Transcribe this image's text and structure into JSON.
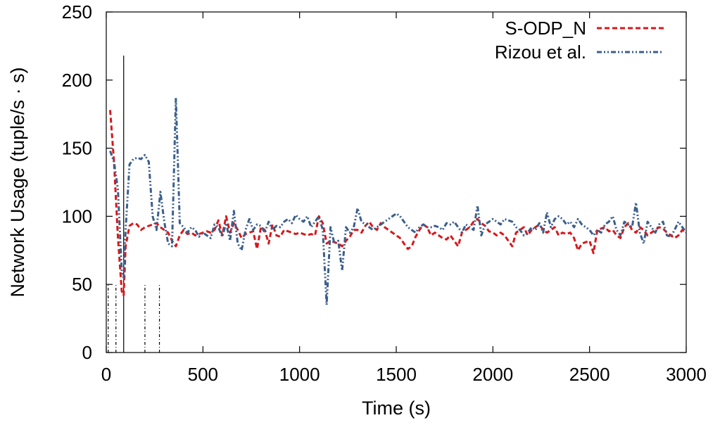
{
  "chart_data": {
    "type": "line",
    "title": "",
    "xlabel": "Time (s)",
    "ylabel": "Network Usage (tuple/s · s)",
    "xlim": [
      0,
      3000
    ],
    "ylim": [
      0,
      250
    ],
    "xticks": [
      0,
      500,
      1000,
      1500,
      2000,
      2500,
      3000
    ],
    "yticks": [
      0,
      50,
      100,
      150,
      200,
      250
    ],
    "xtick_labels": [
      "0",
      "500",
      "1000",
      "1500",
      "2000",
      "2500",
      "3000"
    ],
    "ytick_labels": [
      "0",
      "50",
      "100",
      "150",
      "200",
      "250"
    ],
    "grid": false,
    "legend": "top-right",
    "series": [
      {
        "name": "S-ODP_N",
        "color": "#d7191c",
        "dash": "dashed",
        "x": [
          20,
          40,
          60,
          80,
          90,
          100,
          120,
          140,
          160,
          180,
          200,
          220,
          240,
          260,
          280,
          300,
          320,
          340,
          360,
          380,
          400,
          420,
          440,
          460,
          480,
          500,
          520,
          540,
          560,
          580,
          600,
          620,
          640,
          660,
          680,
          700,
          720,
          740,
          760,
          780,
          800,
          820,
          840,
          860,
          880,
          900,
          920,
          940,
          960,
          980,
          1000,
          1020,
          1040,
          1060,
          1080,
          1100,
          1120,
          1140,
          1160,
          1180,
          1200,
          1220,
          1240,
          1260,
          1280,
          1300,
          1320,
          1340,
          1360,
          1380,
          1400,
          1420,
          1440,
          1460,
          1480,
          1500,
          1520,
          1540,
          1560,
          1580,
          1600,
          1620,
          1640,
          1660,
          1680,
          1700,
          1720,
          1740,
          1760,
          1780,
          1800,
          1820,
          1840,
          1860,
          1880,
          1900,
          1920,
          1940,
          1960,
          1980,
          2000,
          2020,
          2040,
          2060,
          2080,
          2100,
          2120,
          2140,
          2160,
          2180,
          2200,
          2220,
          2240,
          2260,
          2280,
          2300,
          2320,
          2340,
          2360,
          2380,
          2400,
          2420,
          2440,
          2460,
          2480,
          2500,
          2520,
          2540,
          2560,
          2580,
          2600,
          2620,
          2640,
          2660,
          2680,
          2700,
          2720,
          2740,
          2760,
          2780,
          2800,
          2820,
          2840,
          2860,
          2880,
          2900,
          2920,
          2940,
          2960,
          2980,
          3000
        ],
        "values": [
          178,
          140,
          85,
          45,
          42,
          78,
          93,
          95,
          94,
          90,
          92,
          93,
          94,
          95,
          92,
          90,
          88,
          82,
          78,
          86,
          90,
          87,
          88,
          86,
          87,
          88,
          89,
          88,
          90,
          97,
          86,
          100,
          88,
          95,
          90,
          84,
          87,
          88,
          89,
          76,
          92,
          90,
          80,
          94,
          86,
          85,
          90,
          89,
          88,
          87,
          88,
          87,
          86,
          87,
          86,
          100,
          95,
          80,
          82,
          81,
          80,
          78,
          82,
          85,
          90,
          90,
          88,
          93,
          96,
          92,
          90,
          95,
          92,
          90,
          88,
          86,
          84,
          80,
          76,
          78,
          85,
          90,
          94,
          92,
          86,
          88,
          86,
          84,
          83,
          86,
          82,
          78,
          88,
          90,
          92,
          96,
          98,
          95,
          93,
          89,
          88,
          86,
          88,
          86,
          82,
          78,
          88,
          90,
          92,
          86,
          90,
          92,
          94,
          90,
          88,
          90,
          92,
          86,
          88,
          87,
          88,
          84,
          75,
          80,
          81,
          82,
          73,
          90,
          91,
          92,
          89,
          90,
          86,
          84,
          92,
          95,
          90,
          88,
          92,
          90,
          86,
          88,
          90,
          92,
          91,
          88,
          86,
          84,
          86,
          90,
          88
        ],
        "sample_step": 20
      },
      {
        "name": "Rizou et al.",
        "color": "#3b5f8c",
        "dash": "dash-dot-dot",
        "x": [
          20,
          40,
          60,
          80,
          90,
          100,
          120,
          140,
          160,
          180,
          200,
          220,
          240,
          260,
          280,
          300,
          320,
          340,
          360,
          380,
          400,
          420,
          440,
          460,
          480,
          500,
          520,
          540,
          560,
          580,
          600,
          620,
          640,
          660,
          680,
          700,
          720,
          740,
          760,
          780,
          800,
          820,
          840,
          860,
          880,
          900,
          920,
          940,
          960,
          980,
          1000,
          1020,
          1040,
          1060,
          1080,
          1100,
          1120,
          1140,
          1160,
          1180,
          1200,
          1220,
          1240,
          1260,
          1280,
          1300,
          1320,
          1340,
          1360,
          1380,
          1400,
          1420,
          1440,
          1460,
          1480,
          1500,
          1520,
          1540,
          1560,
          1580,
          1600,
          1620,
          1640,
          1660,
          1680,
          1700,
          1720,
          1740,
          1760,
          1780,
          1800,
          1820,
          1840,
          1860,
          1880,
          1900,
          1920,
          1940,
          1960,
          1980,
          2000,
          2020,
          2040,
          2060,
          2080,
          2100,
          2120,
          2140,
          2160,
          2180,
          2200,
          2220,
          2240,
          2260,
          2280,
          2300,
          2320,
          2340,
          2360,
          2380,
          2400,
          2420,
          2440,
          2460,
          2480,
          2500,
          2520,
          2540,
          2560,
          2580,
          2600,
          2620,
          2640,
          2660,
          2680,
          2700,
          2720,
          2740,
          2760,
          2780,
          2800,
          2820,
          2840,
          2860,
          2880,
          2900,
          2920,
          2940,
          2960,
          2980,
          3000
        ],
        "values": [
          148,
          140,
          120,
          60,
          55,
          90,
          138,
          142,
          143,
          142,
          145,
          140,
          100,
          90,
          118,
          96,
          80,
          78,
          187,
          95,
          92,
          88,
          92,
          90,
          85,
          88,
          86,
          84,
          94,
          92,
          85,
          95,
          82,
          104,
          80,
          75,
          90,
          98,
          90,
          94,
          93,
          88,
          96,
          90,
          93,
          92,
          96,
          98,
          95,
          101,
          98,
          96,
          100,
          92,
          96,
          100,
          90,
          35,
          92,
          80,
          82,
          60,
          92,
          88,
          92,
          106,
          96,
          94,
          92,
          90,
          92,
          94,
          96,
          98,
          100,
          102,
          100,
          96,
          92,
          90,
          88,
          92,
          94,
          92,
          92,
          93,
          92,
          90,
          95,
          94,
          96,
          92,
          88,
          94,
          92,
          90,
          108,
          86,
          94,
          96,
          98,
          96,
          94,
          98,
          97,
          96,
          92,
          90,
          86,
          88,
          92,
          90,
          95,
          88,
          103,
          92,
          98,
          100,
          98,
          94,
          96,
          92,
          98,
          94,
          92,
          90,
          86,
          90,
          88,
          94,
          96,
          100,
          90,
          86,
          96,
          94,
          92,
          110,
          88,
          80,
          96,
          92,
          88,
          94,
          96,
          86,
          85,
          90,
          96,
          92,
          88
        ],
        "sample_step": 20
      }
    ],
    "vertical_lines": [
      {
        "x": 10,
        "y_top": 50,
        "style": "dotted"
      },
      {
        "x": 50,
        "y_top": 50,
        "style": "dotted"
      },
      {
        "x": 90,
        "y_top": 218,
        "style": "solid"
      },
      {
        "x": 200,
        "y_top": 50,
        "style": "dotted"
      },
      {
        "x": 275,
        "y_top": 50,
        "style": "dotted"
      }
    ]
  }
}
